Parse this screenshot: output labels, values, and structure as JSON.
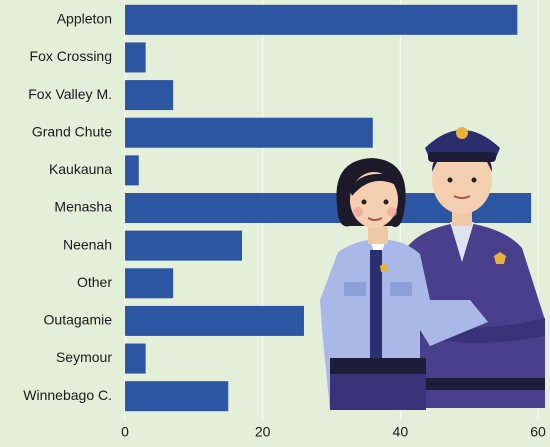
{
  "chart_data": {
    "type": "bar",
    "orientation": "horizontal",
    "categories": [
      "Appleton",
      "Fox Crossing",
      "Fox Valley M.",
      "Grand Chute",
      "Kaukauna",
      "Menasha",
      "Neenah",
      "Other",
      "Outagamie",
      "Seymour",
      "Winnebago C."
    ],
    "values": [
      57,
      3,
      7,
      36,
      2,
      59,
      17,
      7,
      26,
      3,
      15
    ],
    "color": "#2c56a1",
    "xlim": [
      0,
      60
    ],
    "xticks": [
      0,
      20,
      40,
      60
    ],
    "grid": true
  }
}
